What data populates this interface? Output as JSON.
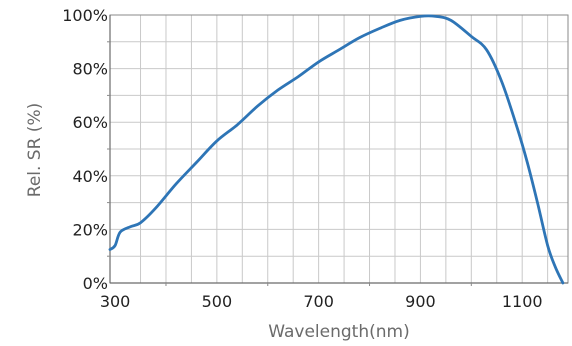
{
  "chart_data": {
    "type": "line",
    "xlabel": "Wavelength(nm)",
    "ylabel": "Rel. SR (%)",
    "xlim": [
      290,
      1190
    ],
    "ylim": [
      0,
      100
    ],
    "x_ticks": [
      300,
      500,
      700,
      900,
      1100
    ],
    "x_tick_labels": [
      "300",
      "500",
      "700",
      "900",
      "1100"
    ],
    "y_ticks": [
      0,
      20,
      40,
      60,
      80,
      100
    ],
    "y_tick_labels": [
      "0%",
      "20%",
      "40%",
      "60%",
      "80%",
      "100%"
    ],
    "grid": true,
    "line_color": "#2e75b6",
    "series": [
      {
        "x": [
          290,
          300,
          310,
          330,
          350,
          380,
          420,
          460,
          500,
          540,
          580,
          620,
          660,
          700,
          740,
          780,
          820,
          860,
          900,
          930,
          960,
          1000,
          1030,
          1060,
          1090,
          1110,
          1130,
          1150,
          1165,
          1180
        ],
        "y": [
          12.5,
          14,
          19,
          21,
          22.5,
          28,
          37,
          45,
          53,
          59,
          66,
          72,
          77,
          82.5,
          87,
          91.5,
          95,
          98,
          99.5,
          99.5,
          98,
          92,
          87,
          75,
          58,
          45,
          30,
          14,
          6,
          0
        ]
      }
    ]
  }
}
